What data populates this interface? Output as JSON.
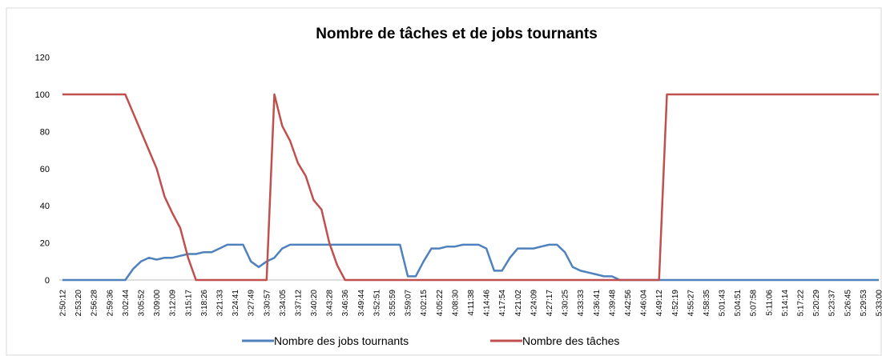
{
  "chart_data": {
    "type": "line",
    "title": "Nombre de tâches et de jobs tournants",
    "categories": [
      "2:50:12",
      null,
      "2:53:20",
      null,
      "2:56:28",
      null,
      "2:59:36",
      null,
      "3:02:44",
      null,
      "3:05:52",
      null,
      "3:09:00",
      null,
      "3:12:09",
      null,
      "3:15:17",
      null,
      "3:18:26",
      null,
      "3:21:33",
      null,
      "3:24:41",
      null,
      "3:27:49",
      null,
      "3:30:57",
      null,
      "3:34:05",
      null,
      "3:37:12",
      null,
      "3:40:20",
      null,
      "3:43:28",
      null,
      "3:46:36",
      null,
      "3:49:44",
      null,
      "3:52:51",
      null,
      "3:55:59",
      null,
      "3:59:07",
      null,
      "4:02:15",
      null,
      "4:05:22",
      null,
      "4:08:30",
      null,
      "4:11:38",
      null,
      "4:14:46",
      null,
      "4:17:54",
      null,
      "4:21:02",
      null,
      "4:24:09",
      null,
      "4:27:17",
      null,
      "4:30:25",
      null,
      "4:33:33",
      null,
      "4:36:41",
      null,
      "4:39:48",
      null,
      "4:42:56",
      null,
      "4:46:04",
      null,
      "4:49:12",
      null,
      "4:52:19",
      null,
      "4:55:27",
      null,
      "4:58:35",
      null,
      "5:01:43",
      null,
      "5:04:51",
      null,
      "5:07:58",
      null,
      "5:11:06",
      null,
      "5:14:14",
      null,
      "5:17:22",
      null,
      "5:20:29",
      null,
      "5:23:37",
      null,
      "5:26:45",
      null,
      "5:29:53",
      null,
      "5:33:00"
    ],
    "series": [
      {
        "name": "Nombre des jobs tournants",
        "color": "#4f81bd",
        "values": [
          0,
          0,
          0,
          0,
          0,
          0,
          0,
          0,
          0,
          6,
          10,
          12,
          11,
          12,
          12,
          13,
          14,
          14,
          15,
          15,
          17,
          19,
          19,
          19,
          10,
          7,
          10,
          12,
          17,
          19,
          19,
          19,
          19,
          19,
          19,
          19,
          19,
          19,
          19,
          19,
          19,
          19,
          19,
          19,
          2,
          2,
          10,
          17,
          17,
          18,
          18,
          19,
          19,
          19,
          17,
          5,
          5,
          12,
          17,
          17,
          17,
          18,
          19,
          19,
          15,
          7,
          5,
          4,
          3,
          2,
          2,
          0,
          0,
          0,
          0,
          0,
          0,
          0,
          0,
          0,
          0,
          0,
          0,
          0,
          0,
          0,
          0,
          0,
          0,
          0,
          0,
          0,
          0,
          0,
          0,
          0,
          0,
          0,
          0,
          0,
          0,
          0,
          0,
          0,
          0
        ]
      },
      {
        "name": "Nombre des tâches",
        "color": "#c0504d",
        "values": [
          100,
          100,
          100,
          100,
          100,
          100,
          100,
          100,
          100,
          90,
          80,
          70,
          60,
          45,
          36,
          28,
          12,
          0,
          0,
          0,
          0,
          0,
          0,
          0,
          0,
          0,
          0,
          100,
          83,
          75,
          63,
          56,
          43,
          38,
          20,
          8,
          0,
          0,
          0,
          0,
          0,
          0,
          0,
          0,
          0,
          0,
          0,
          0,
          0,
          0,
          0,
          0,
          0,
          0,
          0,
          0,
          0,
          0,
          0,
          0,
          0,
          0,
          0,
          0,
          0,
          0,
          0,
          0,
          0,
          0,
          0,
          0,
          0,
          0,
          0,
          0,
          0,
          100,
          100,
          100,
          100,
          100,
          100,
          100,
          100,
          100,
          100,
          100,
          100,
          100,
          100,
          100,
          100,
          100,
          100,
          100,
          100,
          100,
          100,
          100,
          100,
          100,
          100,
          100,
          100
        ]
      }
    ],
    "ylim": [
      0,
      120
    ],
    "yticks": [
      0,
      20,
      40,
      60,
      80,
      100,
      120
    ],
    "grid": false,
    "legend": "bottom"
  }
}
